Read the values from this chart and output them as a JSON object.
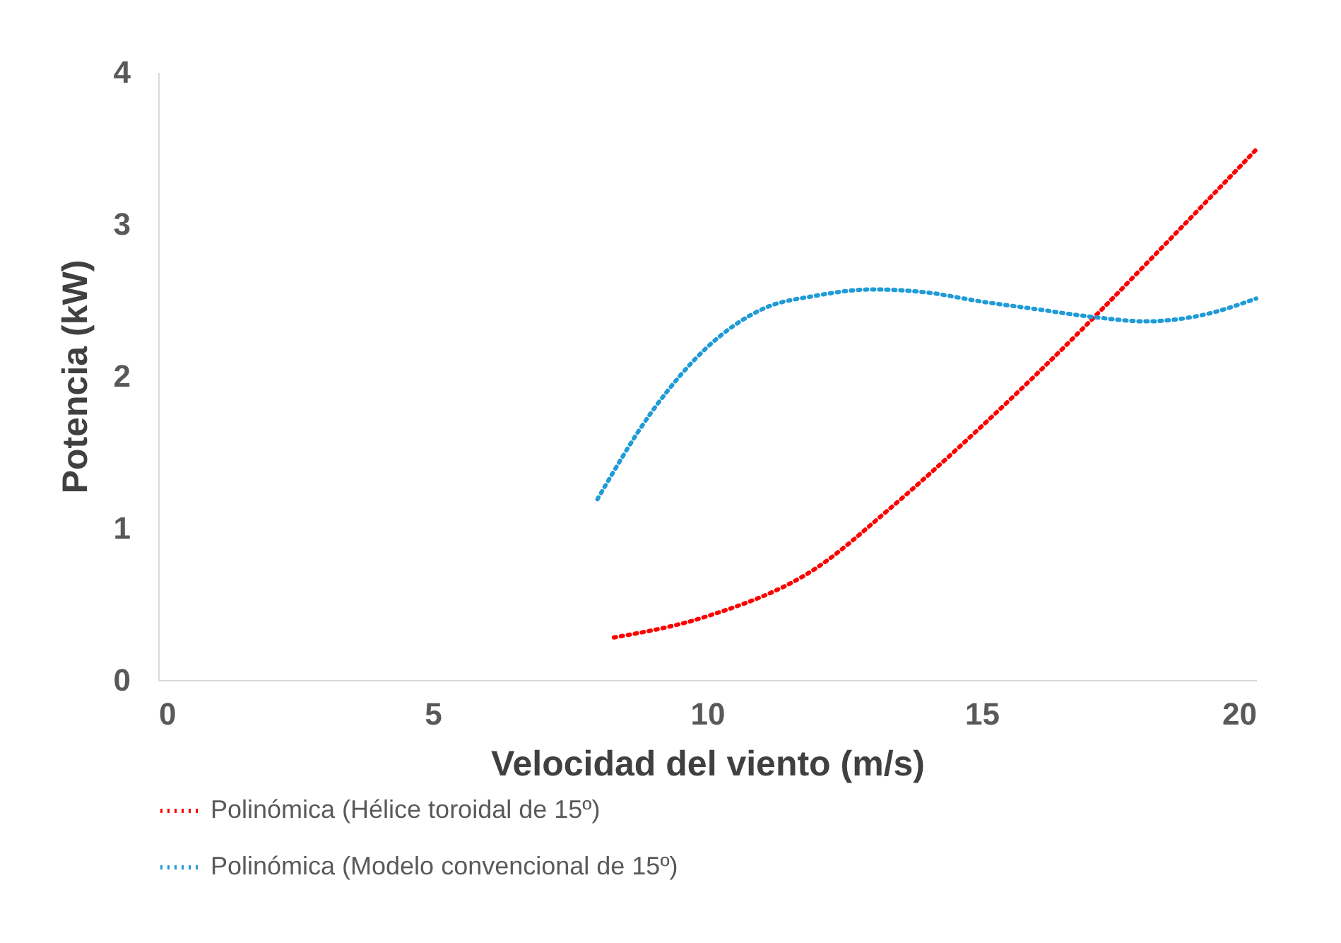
{
  "chart_data": {
    "type": "line",
    "xlabel": "Velocidad del viento (m/s)",
    "ylabel": "Potencia (kW)",
    "xlim": [
      0,
      20
    ],
    "xticks": [
      0,
      5,
      10,
      15,
      20
    ],
    "ylim": [
      0,
      4
    ],
    "yticks": [
      0,
      1,
      2,
      3,
      4
    ],
    "grid": false,
    "legend": "bottom",
    "marker": "none",
    "line_style": "dotted",
    "series": [
      {
        "name": "Polinómica (Hélice toroidal de 15º)",
        "color": "#ff0000",
        "x": [
          8.3,
          10,
          12,
          13.3,
          15,
          17,
          18,
          20
        ],
        "values": [
          0.28,
          0.42,
          0.74,
          1.12,
          1.67,
          2.37,
          2.74,
          3.49
        ]
      },
      {
        "name": "Polinómica (Modelo convencional de 15º)",
        "color": "#1f9bd7",
        "x": [
          8,
          9,
          10,
          11,
          12,
          13,
          14,
          15,
          16,
          17,
          18,
          19,
          20
        ],
        "values": [
          1.19,
          1.77,
          2.19,
          2.44,
          2.53,
          2.57,
          2.55,
          2.49,
          2.44,
          2.39,
          2.36,
          2.4,
          2.51
        ]
      }
    ]
  }
}
